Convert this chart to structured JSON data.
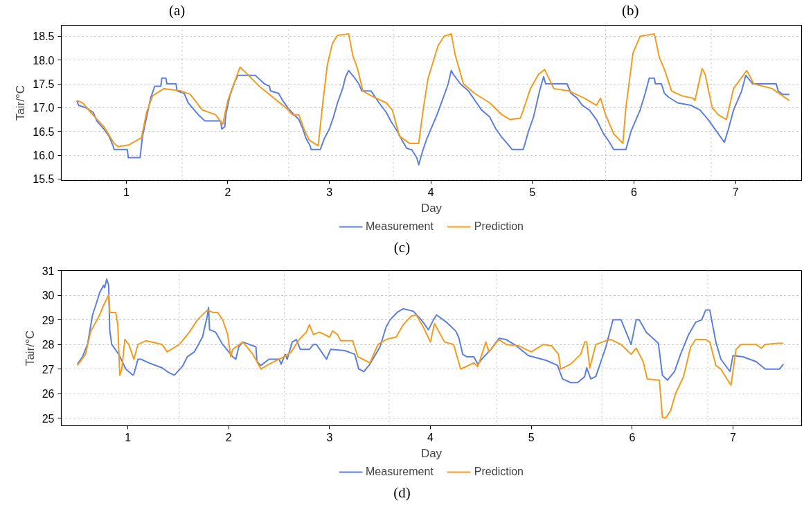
{
  "chart_data": [
    {
      "type": "line",
      "xlabel": "Day",
      "ylabel": "Tair/°C",
      "annotations": [
        "(a)",
        "(b)",
        "(c)"
      ],
      "xlim": [
        0.36,
        7.65
      ],
      "xticks": [
        1,
        2,
        3,
        4,
        5,
        6,
        7
      ],
      "ylim": [
        15.47,
        18.73
      ],
      "yticks": [
        15.5,
        {
          "value": 16,
          "label": "16.0"
        },
        16.5,
        {
          "value": 17,
          "label": "17.0"
        },
        17.5,
        {
          "value": 18,
          "label": "18.0"
        },
        18.5
      ],
      "grid": "y",
      "legend": "bottom",
      "line_style": "solid",
      "ref_lines": [
        {
          "axis": "x",
          "value": 1.55,
          "label": null,
          "color": "#bbbbbb",
          "line_style": "dotted"
        },
        {
          "axis": "x",
          "value": 2.6,
          "label": null,
          "color": "#bbbbbb",
          "line_style": "dotted"
        },
        {
          "axis": "x",
          "value": 3.63,
          "label": null,
          "color": "#bbbbbb",
          "line_style": "dotted"
        },
        {
          "axis": "x",
          "value": 4.67,
          "label": null,
          "color": "#bbbbbb",
          "line_style": "dotted"
        },
        {
          "axis": "x",
          "value": 5.72,
          "label": null,
          "color": "#bbbbbb",
          "line_style": "dotted"
        },
        {
          "axis": "x",
          "value": 6.76,
          "label": null,
          "color": "#bbbbbb",
          "line_style": "dotted"
        }
      ],
      "series": [
        {
          "name": "Measurement",
          "color": "#5b7fe0",
          "x": [
            0.514,
            0.53,
            0.6,
            0.675,
            0.71,
            0.78,
            0.83,
            0.87,
            0.88,
            1.01,
            1.02,
            1.135,
            1.16,
            1.2,
            1.24,
            1.28,
            1.34,
            1.35,
            1.39,
            1.4,
            1.49,
            1.5,
            1.57,
            1.61,
            1.67,
            1.71,
            1.775,
            1.93,
            1.94,
            1.97,
            1.98,
            2.02,
            2.07,
            2.1,
            2.27,
            2.31,
            2.36,
            2.41,
            2.42,
            2.5,
            2.54,
            2.59,
            2.63,
            2.7,
            2.74,
            2.77,
            2.81,
            2.82,
            2.91,
            2.95,
            3.0,
            3.04,
            3.08,
            3.13,
            3.16,
            3.19,
            3.24,
            3.29,
            3.32,
            3.41,
            3.49,
            3.56,
            3.61,
            3.67,
            3.72,
            3.76,
            3.8,
            3.81,
            3.86,
            3.88,
            3.92,
            3.96,
            4.01,
            4.06,
            4.12,
            4.17,
            4.2,
            4.22,
            4.29,
            4.37,
            4.45,
            4.5,
            4.58,
            4.64,
            4.69,
            4.75,
            4.8,
            4.91,
            4.96,
            5.01,
            5.07,
            5.11,
            5.13,
            5.21,
            5.34,
            5.38,
            5.44,
            5.49,
            5.56,
            5.63,
            5.7,
            5.75,
            5.8,
            5.92,
            5.97,
            6.06,
            6.11,
            6.15,
            6.2,
            6.21,
            6.27,
            6.3,
            6.34,
            6.43,
            6.56,
            6.65,
            6.73,
            6.78,
            6.83,
            6.89,
            6.93,
            6.98,
            7.06,
            7.1,
            7.17,
            7.4,
            7.42,
            7.46,
            7.53
          ],
          "values": [
            17.15,
            17.05,
            17.0,
            16.9,
            16.72,
            16.55,
            16.4,
            16.2,
            16.12,
            16.12,
            15.95,
            15.95,
            16.4,
            16.8,
            17.2,
            17.45,
            17.45,
            17.62,
            17.62,
            17.5,
            17.5,
            17.35,
            17.3,
            17.1,
            16.95,
            16.85,
            16.72,
            16.72,
            16.55,
            16.6,
            16.85,
            17.25,
            17.55,
            17.68,
            17.68,
            17.6,
            17.5,
            17.45,
            17.35,
            17.3,
            17.15,
            17.0,
            16.9,
            16.75,
            16.55,
            16.35,
            16.2,
            16.12,
            16.12,
            16.35,
            16.55,
            16.8,
            17.1,
            17.4,
            17.65,
            17.78,
            17.65,
            17.5,
            17.35,
            17.35,
            17.1,
            16.9,
            16.7,
            16.5,
            16.3,
            16.15,
            16.12,
            16.12,
            15.95,
            15.8,
            16.1,
            16.35,
            16.6,
            16.85,
            17.2,
            17.5,
            17.78,
            17.7,
            17.5,
            17.35,
            17.1,
            16.95,
            16.8,
            16.55,
            16.4,
            16.25,
            16.12,
            16.12,
            16.5,
            16.8,
            17.35,
            17.65,
            17.5,
            17.5,
            17.5,
            17.3,
            17.2,
            17.05,
            16.95,
            16.75,
            16.45,
            16.3,
            16.12,
            16.12,
            16.5,
            16.95,
            17.3,
            17.62,
            17.62,
            17.5,
            17.5,
            17.3,
            17.22,
            17.1,
            17.05,
            16.95,
            16.75,
            16.6,
            16.45,
            16.27,
            16.55,
            16.95,
            17.35,
            17.68,
            17.5,
            17.5,
            17.35,
            17.28,
            17.28
          ]
        },
        {
          "name": "Prediction",
          "color": "#f59b1c",
          "x": [
            0.514,
            0.57,
            0.65,
            0.78,
            0.88,
            0.92,
            1.03,
            1.15,
            1.2,
            1.26,
            1.37,
            1.54,
            1.63,
            1.75,
            1.88,
            1.95,
            2.0,
            2.06,
            2.12,
            2.17,
            2.31,
            2.57,
            2.64,
            2.7,
            2.75,
            2.8,
            2.89,
            2.93,
            2.98,
            3.03,
            3.08,
            3.19,
            3.23,
            3.28,
            3.33,
            3.41,
            3.56,
            3.62,
            3.69,
            3.79,
            3.88,
            3.92,
            3.97,
            4.07,
            4.13,
            4.2,
            4.24,
            4.32,
            4.43,
            4.58,
            4.7,
            4.78,
            4.88,
            4.91,
            4.98,
            5.06,
            5.12,
            5.21,
            5.36,
            5.51,
            5.63,
            5.67,
            5.72,
            5.8,
            5.89,
            5.92,
            5.99,
            6.06,
            6.2,
            6.25,
            6.3,
            6.37,
            6.47,
            6.58,
            6.6,
            6.67,
            6.7,
            6.77,
            6.83,
            6.91,
            6.98,
            7.11,
            7.18,
            7.36,
            7.53
          ],
          "values": [
            17.15,
            17.1,
            16.9,
            16.6,
            16.25,
            16.18,
            16.22,
            16.37,
            16.9,
            17.25,
            17.4,
            17.35,
            17.28,
            16.95,
            16.85,
            16.65,
            17.15,
            17.5,
            17.85,
            17.75,
            17.45,
            17.0,
            16.85,
            16.85,
            16.55,
            16.32,
            16.2,
            17.0,
            17.9,
            18.35,
            18.52,
            18.55,
            18.1,
            17.8,
            17.35,
            17.25,
            17.1,
            16.95,
            16.4,
            16.25,
            16.25,
            16.9,
            17.6,
            18.3,
            18.5,
            18.55,
            18.1,
            17.5,
            17.3,
            17.1,
            16.85,
            16.75,
            16.78,
            16.95,
            17.4,
            17.7,
            17.8,
            17.4,
            17.35,
            17.2,
            17.05,
            17.2,
            16.85,
            16.45,
            16.25,
            17.0,
            18.15,
            18.5,
            18.55,
            18.05,
            17.8,
            17.35,
            17.25,
            17.2,
            17.15,
            17.82,
            17.7,
            17.0,
            16.85,
            16.75,
            17.4,
            17.78,
            17.5,
            17.4,
            17.15
          ]
        }
      ]
    },
    {
      "type": "line",
      "xlabel": "Day",
      "ylabel": "Tair/°C",
      "annotations": [
        "(d)"
      ],
      "xlim": [
        0.34,
        7.68
      ],
      "xticks": [
        1,
        2,
        3,
        4,
        5,
        6,
        7
      ],
      "ylim": [
        24.7,
        31
      ],
      "yticks": [
        25,
        26,
        27,
        28,
        29,
        30,
        31
      ],
      "grid": "y",
      "legend": "bottom",
      "line_style": "solid",
      "ref_lines": [
        {
          "axis": "x",
          "value": 1.51,
          "label": null,
          "color": "#bbbbbb",
          "line_style": "dotted"
        },
        {
          "axis": "x",
          "value": 2.55,
          "label": null,
          "color": "#bbbbbb",
          "line_style": "dotted"
        },
        {
          "axis": "x",
          "value": 3.59,
          "label": null,
          "color": "#bbbbbb",
          "line_style": "dotted"
        },
        {
          "axis": "x",
          "value": 4.66,
          "label": null,
          "color": "#bbbbbb",
          "line_style": "dotted"
        },
        {
          "axis": "x",
          "value": 5.7,
          "label": null,
          "color": "#bbbbbb",
          "line_style": "dotted"
        },
        {
          "axis": "x",
          "value": 6.75,
          "label": null,
          "color": "#bbbbbb",
          "line_style": "dotted"
        }
      ],
      "series": [
        {
          "name": "Measurement",
          "color": "#5b7fe0",
          "x": [
            0.5,
            0.55,
            0.6,
            0.65,
            0.69,
            0.72,
            0.76,
            0.77,
            0.79,
            0.81,
            0.82,
            0.84,
            0.91,
            0.98,
            1.05,
            1.06,
            1.1,
            1.13,
            1.21,
            1.34,
            1.39,
            1.46,
            1.54,
            1.59,
            1.66,
            1.74,
            1.79,
            1.8,
            1.81,
            1.87,
            1.94,
            2.04,
            2.07,
            2.1,
            2.14,
            2.27,
            2.28,
            2.32,
            2.4,
            2.5,
            2.52,
            2.56,
            2.58,
            2.63,
            2.67,
            2.71,
            2.8,
            2.84,
            2.87,
            2.97,
            3.01,
            3.15,
            3.25,
            3.29,
            3.34,
            3.4,
            3.5,
            3.56,
            3.6,
            3.67,
            3.73,
            3.83,
            3.91,
            3.98,
            4.03,
            4.06,
            4.16,
            4.25,
            4.28,
            4.32,
            4.36,
            4.43,
            4.47,
            4.53,
            4.6,
            4.68,
            4.75,
            4.85,
            4.97,
            5.15,
            5.26,
            5.31,
            5.39,
            5.46,
            5.53,
            5.55,
            5.59,
            5.64,
            5.74,
            5.81,
            5.89,
            5.99,
            6.04,
            6.07,
            6.14,
            6.26,
            6.3,
            6.35,
            6.42,
            6.48,
            6.56,
            6.63,
            6.69,
            6.73,
            6.77,
            6.83,
            6.88,
            6.97,
            7.0,
            7.1,
            7.23,
            7.32,
            7.46,
            7.5
          ],
          "values": [
            27.2,
            27.5,
            28.0,
            29.2,
            29.7,
            30.1,
            30.4,
            30.3,
            30.65,
            30.4,
            28.6,
            28.0,
            27.6,
            27.0,
            26.75,
            26.8,
            27.4,
            27.4,
            27.25,
            27.05,
            26.9,
            26.75,
            27.1,
            27.5,
            27.7,
            28.3,
            29.2,
            29.5,
            28.6,
            28.5,
            28.0,
            27.5,
            27.4,
            27.9,
            28.1,
            27.9,
            27.3,
            27.15,
            27.4,
            27.4,
            27.2,
            27.6,
            27.4,
            28.1,
            28.2,
            27.8,
            27.8,
            28.0,
            28.0,
            27.4,
            27.8,
            27.75,
            27.6,
            27.0,
            26.9,
            27.2,
            27.9,
            28.7,
            29.0,
            29.3,
            29.45,
            29.35,
            29.0,
            28.6,
            29.0,
            29.2,
            28.9,
            28.55,
            28.3,
            27.6,
            27.5,
            27.5,
            27.2,
            27.5,
            27.8,
            28.25,
            28.2,
            27.95,
            27.55,
            27.35,
            27.15,
            26.6,
            26.45,
            26.45,
            26.7,
            27.05,
            26.6,
            26.7,
            27.9,
            29.0,
            29.0,
            28.0,
            29.0,
            29.0,
            28.5,
            28.05,
            26.75,
            26.55,
            26.9,
            27.6,
            28.4,
            28.9,
            29.0,
            29.4,
            29.4,
            28.1,
            27.4,
            26.9,
            27.55,
            27.5,
            27.3,
            27.0,
            27.0,
            27.2
          ]
        },
        {
          "name": "Prediction",
          "color": "#f59b1c",
          "x": [
            0.5,
            0.58,
            0.63,
            0.68,
            0.72,
            0.76,
            0.81,
            0.82,
            0.88,
            0.9,
            0.92,
            0.94,
            0.97,
            1.01,
            1.06,
            1.1,
            1.18,
            1.34,
            1.39,
            1.51,
            1.61,
            1.69,
            1.79,
            1.84,
            1.89,
            1.94,
            1.99,
            2.02,
            2.04,
            2.14,
            2.24,
            2.32,
            2.4,
            2.55,
            2.62,
            2.7,
            2.77,
            2.8,
            2.84,
            2.9,
            3.0,
            3.03,
            3.08,
            3.11,
            3.23,
            3.28,
            3.33,
            3.4,
            3.48,
            3.56,
            3.66,
            3.73,
            3.81,
            3.86,
            3.93,
            4.0,
            4.04,
            4.14,
            4.23,
            4.3,
            4.43,
            4.47,
            4.55,
            4.58,
            4.68,
            4.75,
            4.87,
            5.0,
            5.12,
            5.2,
            5.27,
            5.29,
            5.39,
            5.49,
            5.53,
            5.55,
            5.58,
            5.64,
            5.74,
            5.79,
            5.89,
            5.99,
            6.04,
            6.11,
            6.15,
            6.27,
            6.3,
            6.33,
            6.38,
            6.43,
            6.51,
            6.58,
            6.63,
            6.73,
            6.77,
            6.83,
            6.88,
            6.94,
            6.98,
            7.03,
            7.08,
            7.23,
            7.28,
            7.32,
            7.44,
            7.5
          ],
          "values": [
            27.15,
            27.6,
            28.5,
            28.9,
            29.2,
            29.6,
            30.0,
            29.3,
            29.3,
            28.8,
            26.75,
            27.0,
            28.2,
            28.0,
            27.4,
            28.0,
            28.15,
            28.0,
            27.7,
            28.0,
            28.5,
            29.0,
            29.4,
            29.3,
            29.3,
            29.0,
            28.4,
            27.5,
            27.8,
            28.1,
            27.6,
            27.0,
            27.2,
            27.5,
            27.7,
            28.2,
            28.5,
            28.8,
            28.4,
            28.5,
            28.3,
            28.55,
            28.4,
            28.15,
            28.15,
            27.5,
            27.4,
            27.25,
            28.0,
            28.2,
            28.3,
            28.8,
            29.15,
            29.2,
            28.7,
            28.1,
            28.85,
            28.1,
            28.0,
            27.0,
            27.25,
            27.1,
            28.1,
            27.7,
            28.2,
            28.0,
            27.95,
            27.7,
            28.0,
            27.95,
            27.6,
            27.0,
            27.2,
            27.6,
            28.1,
            28.1,
            27.05,
            28.0,
            28.15,
            28.2,
            28.0,
            27.6,
            27.85,
            27.3,
            26.6,
            26.55,
            25.05,
            25.0,
            25.3,
            26.0,
            26.7,
            27.9,
            28.2,
            28.2,
            28.1,
            27.15,
            27.0,
            26.6,
            26.35,
            27.8,
            28.0,
            28.0,
            27.85,
            28.0,
            28.05,
            28.05
          ]
        }
      ]
    }
  ]
}
